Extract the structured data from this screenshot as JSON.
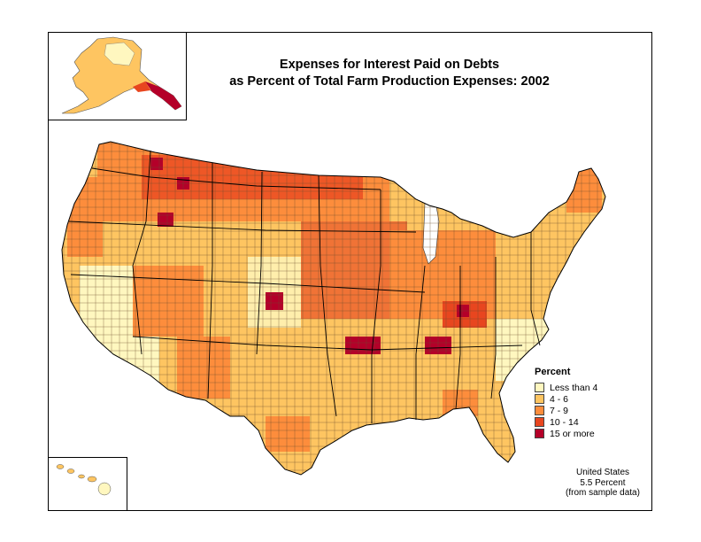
{
  "title": {
    "line1": "Expenses for Interest Paid on Debts",
    "line2": "as Percent of Total Farm Production Expenses:  2002"
  },
  "legend": {
    "title": "Percent",
    "items": [
      {
        "label": "Less than 4",
        "color": "#fff7bf"
      },
      {
        "label": "4 - 6",
        "color": "#fec561"
      },
      {
        "label": "7 - 9",
        "color": "#fd8d3c"
      },
      {
        "label": "10 - 14",
        "color": "#e8461f"
      },
      {
        "label": "15 or more",
        "color": "#b40029"
      }
    ]
  },
  "summary": {
    "line1": "United States",
    "line2": "5.5 Percent",
    "line3": "(from sample data)"
  },
  "regions": [
    {
      "name": "alaska",
      "class": 1
    },
    {
      "name": "hawaii",
      "class": 1
    },
    {
      "name": "lower-48",
      "class": 2
    }
  ]
}
